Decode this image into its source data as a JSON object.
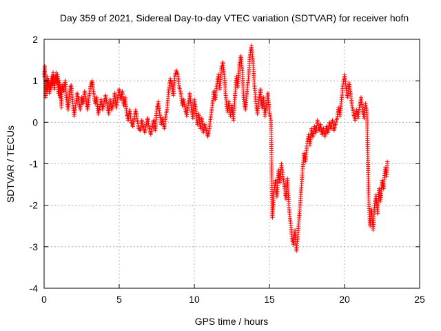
{
  "chart_data": {
    "type": "scatter",
    "title": "Day 359 of 2021, Sidereal Day-to-day VTEC variation (SDTVAR) for receiver hofn",
    "xlabel": "GPS time / hours",
    "ylabel": "SDTVAR / TECUs",
    "xlim": [
      0,
      25
    ],
    "ylim": [
      -4,
      2
    ],
    "xticks": [
      "0",
      "5",
      "10",
      "15",
      "20",
      "25"
    ],
    "yticks": [
      "-4",
      "-3",
      "-2",
      "-1",
      "0",
      "1",
      "2"
    ],
    "grid": true,
    "marker": "+",
    "color": "#ff0000",
    "series": [
      {
        "name": "SDTVAR",
        "points": [
          [
            0.0,
            1.1
          ],
          [
            0.05,
            1.35
          ],
          [
            0.1,
            0.6
          ],
          [
            0.15,
            0.9
          ],
          [
            0.2,
            1.1
          ],
          [
            0.25,
            0.75
          ],
          [
            0.3,
            1.0
          ],
          [
            0.35,
            0.7
          ],
          [
            0.4,
            0.95
          ],
          [
            0.45,
            0.8
          ],
          [
            0.5,
            1.1
          ],
          [
            0.55,
            0.9
          ],
          [
            0.6,
            1.2
          ],
          [
            0.65,
            1.0
          ],
          [
            0.7,
            0.8
          ],
          [
            0.75,
            1.05
          ],
          [
            0.8,
            1.2
          ],
          [
            0.85,
            0.95
          ],
          [
            0.9,
            1.15
          ],
          [
            0.95,
            0.7
          ],
          [
            1.0,
            1.0
          ],
          [
            1.05,
            0.6
          ],
          [
            1.1,
            0.85
          ],
          [
            1.15,
            0.35
          ],
          [
            1.2,
            0.9
          ],
          [
            1.3,
            0.75
          ],
          [
            1.4,
            1.0
          ],
          [
            1.5,
            0.55
          ],
          [
            1.6,
            0.3
          ],
          [
            1.7,
            0.75
          ],
          [
            1.8,
            0.9
          ],
          [
            1.9,
            0.5
          ],
          [
            2.0,
            0.15
          ],
          [
            2.1,
            0.4
          ],
          [
            2.2,
            0.7
          ],
          [
            2.3,
            0.55
          ],
          [
            2.4,
            0.3
          ],
          [
            2.5,
            0.6
          ],
          [
            2.6,
            0.45
          ],
          [
            2.7,
            0.75
          ],
          [
            2.8,
            0.5
          ],
          [
            2.9,
            0.3
          ],
          [
            3.0,
            0.65
          ],
          [
            3.1,
            0.9
          ],
          [
            3.2,
            1.0
          ],
          [
            3.3,
            0.7
          ],
          [
            3.4,
            0.45
          ],
          [
            3.5,
            0.6
          ],
          [
            3.6,
            0.2
          ],
          [
            3.7,
            0.35
          ],
          [
            3.8,
            0.55
          ],
          [
            3.9,
            0.3
          ],
          [
            4.0,
            0.5
          ],
          [
            4.1,
            0.65
          ],
          [
            4.2,
            0.4
          ],
          [
            4.3,
            0.2
          ],
          [
            4.4,
            0.55
          ],
          [
            4.5,
            0.3
          ],
          [
            4.6,
            0.45
          ],
          [
            4.7,
            0.7
          ],
          [
            4.8,
            0.35
          ],
          [
            4.9,
            0.6
          ],
          [
            5.0,
            0.8
          ],
          [
            5.1,
            0.55
          ],
          [
            5.2,
            0.75
          ],
          [
            5.3,
            0.4
          ],
          [
            5.4,
            0.6
          ],
          [
            5.5,
            0.2
          ],
          [
            5.6,
            0.05
          ],
          [
            5.7,
            0.3
          ],
          [
            5.8,
            0.0
          ],
          [
            5.9,
            -0.1
          ],
          [
            6.0,
            0.1
          ],
          [
            6.1,
            0.3
          ],
          [
            6.2,
            0.05
          ],
          [
            6.3,
            -0.15
          ],
          [
            6.4,
            -0.2
          ],
          [
            6.5,
            0.05
          ],
          [
            6.6,
            -0.1
          ],
          [
            6.7,
            -0.25
          ],
          [
            6.8,
            -0.05
          ],
          [
            6.9,
            0.1
          ],
          [
            7.0,
            -0.15
          ],
          [
            7.1,
            -0.3
          ],
          [
            7.2,
            -0.1
          ],
          [
            7.3,
            0.05
          ],
          [
            7.4,
            -0.2
          ],
          [
            7.5,
            0.3
          ],
          [
            7.6,
            0.5
          ],
          [
            7.7,
            0.2
          ],
          [
            7.8,
            -0.05
          ],
          [
            7.9,
            0.1
          ],
          [
            8.0,
            -0.15
          ],
          [
            8.1,
            0.15
          ],
          [
            8.2,
            0.35
          ],
          [
            8.3,
            0.8
          ],
          [
            8.4,
            1.05
          ],
          [
            8.5,
            0.9
          ],
          [
            8.6,
            0.65
          ],
          [
            8.7,
            1.1
          ],
          [
            8.8,
            1.25
          ],
          [
            8.9,
            1.15
          ],
          [
            9.0,
            0.85
          ],
          [
            9.1,
            0.7
          ],
          [
            9.2,
            0.4
          ],
          [
            9.3,
            0.55
          ],
          [
            9.4,
            0.3
          ],
          [
            9.5,
            0.15
          ],
          [
            9.6,
            0.45
          ],
          [
            9.7,
            0.7
          ],
          [
            9.8,
            0.35
          ],
          [
            9.9,
            0.1
          ],
          [
            10.0,
            0.55
          ],
          [
            10.1,
            0.3
          ],
          [
            10.2,
            -0.05
          ],
          [
            10.3,
            0.2
          ],
          [
            10.4,
            -0.15
          ],
          [
            10.5,
            0.1
          ],
          [
            10.6,
            -0.25
          ],
          [
            10.7,
            -0.05
          ],
          [
            10.8,
            -0.2
          ],
          [
            10.9,
            -0.35
          ],
          [
            11.0,
            -0.15
          ],
          [
            11.1,
            0.15
          ],
          [
            11.2,
            0.4
          ],
          [
            11.3,
            0.75
          ],
          [
            11.4,
            0.55
          ],
          [
            11.5,
            0.9
          ],
          [
            11.6,
            1.15
          ],
          [
            11.7,
            0.8
          ],
          [
            11.8,
            1.3
          ],
          [
            11.9,
            1.45
          ],
          [
            12.0,
            1.1
          ],
          [
            12.1,
            0.6
          ],
          [
            12.2,
            0.25
          ],
          [
            12.3,
            0.5
          ],
          [
            12.4,
            0.15
          ],
          [
            12.5,
            0.4
          ],
          [
            12.6,
            0.05
          ],
          [
            12.7,
            0.6
          ],
          [
            12.8,
            1.1
          ],
          [
            12.9,
            0.85
          ],
          [
            13.0,
            1.4
          ],
          [
            13.1,
            1.6
          ],
          [
            13.2,
            1.2
          ],
          [
            13.3,
            0.5
          ],
          [
            13.4,
            0.3
          ],
          [
            13.5,
            0.7
          ],
          [
            13.6,
            1.05
          ],
          [
            13.7,
            1.6
          ],
          [
            13.8,
            1.85
          ],
          [
            13.9,
            1.5
          ],
          [
            14.0,
            0.9
          ],
          [
            14.1,
            0.45
          ],
          [
            14.2,
            0.2
          ],
          [
            14.3,
            0.55
          ],
          [
            14.4,
            0.8
          ],
          [
            14.5,
            0.35
          ],
          [
            14.6,
            0.6
          ],
          [
            14.7,
            0.15
          ],
          [
            14.8,
            0.4
          ],
          [
            14.9,
            0.7
          ],
          [
            15.0,
            0.25
          ],
          [
            15.1,
            0.05
          ],
          [
            15.2,
            -2.3
          ],
          [
            15.3,
            -1.7
          ],
          [
            15.4,
            -1.4
          ],
          [
            15.5,
            -1.8
          ],
          [
            15.6,
            -1.15
          ],
          [
            15.7,
            -1.45
          ],
          [
            15.8,
            -1.0
          ],
          [
            15.9,
            -1.3
          ],
          [
            16.0,
            -1.55
          ],
          [
            16.1,
            -1.85
          ],
          [
            16.2,
            -1.35
          ],
          [
            16.3,
            -2.05
          ],
          [
            16.4,
            -2.4
          ],
          [
            16.5,
            -2.8
          ],
          [
            16.6,
            -2.95
          ],
          [
            16.7,
            -2.6
          ],
          [
            16.8,
            -3.1
          ],
          [
            16.9,
            -2.7
          ],
          [
            17.0,
            -2.2
          ],
          [
            17.1,
            -1.7
          ],
          [
            17.2,
            -1.2
          ],
          [
            17.3,
            -0.75
          ],
          [
            17.4,
            -0.95
          ],
          [
            17.5,
            -0.55
          ],
          [
            17.6,
            -0.3
          ],
          [
            17.7,
            -0.55
          ],
          [
            17.8,
            -0.15
          ],
          [
            17.9,
            -0.35
          ],
          [
            18.0,
            -0.1
          ],
          [
            18.1,
            -0.25
          ],
          [
            18.2,
            0.05
          ],
          [
            18.3,
            -0.2
          ],
          [
            18.4,
            -0.05
          ],
          [
            18.5,
            -0.3
          ],
          [
            18.6,
            -0.15
          ],
          [
            18.7,
            -0.35
          ],
          [
            18.8,
            -0.1
          ],
          [
            18.9,
            -0.25
          ],
          [
            19.0,
            0.0
          ],
          [
            19.1,
            -0.15
          ],
          [
            19.2,
            0.05
          ],
          [
            19.3,
            -0.2
          ],
          [
            19.4,
            -0.05
          ],
          [
            19.5,
            0.1
          ],
          [
            19.6,
            0.35
          ],
          [
            19.7,
            0.15
          ],
          [
            19.8,
            0.55
          ],
          [
            19.9,
            0.9
          ],
          [
            20.0,
            1.15
          ],
          [
            20.1,
            0.85
          ],
          [
            20.2,
            0.6
          ],
          [
            20.3,
            0.95
          ],
          [
            20.4,
            0.7
          ],
          [
            20.5,
            0.4
          ],
          [
            20.6,
            0.2
          ],
          [
            20.7,
            0.05
          ],
          [
            20.8,
            0.3
          ],
          [
            20.9,
            0.1
          ],
          [
            21.0,
            0.4
          ],
          [
            21.1,
            0.6
          ],
          [
            21.2,
            0.3
          ],
          [
            21.3,
            0.1
          ],
          [
            21.4,
            0.45
          ],
          [
            21.5,
            0.2
          ],
          [
            21.6,
            -1.8
          ],
          [
            21.7,
            -2.5
          ],
          [
            21.8,
            -2.1
          ],
          [
            21.9,
            -2.6
          ],
          [
            22.0,
            -2.0
          ],
          [
            22.1,
            -1.75
          ],
          [
            22.2,
            -2.2
          ],
          [
            22.3,
            -1.6
          ],
          [
            22.4,
            -1.9
          ],
          [
            22.5,
            -1.4
          ],
          [
            22.6,
            -1.6
          ],
          [
            22.7,
            -1.1
          ],
          [
            22.8,
            -1.3
          ],
          [
            22.85,
            -0.95
          ]
        ]
      }
    ]
  }
}
